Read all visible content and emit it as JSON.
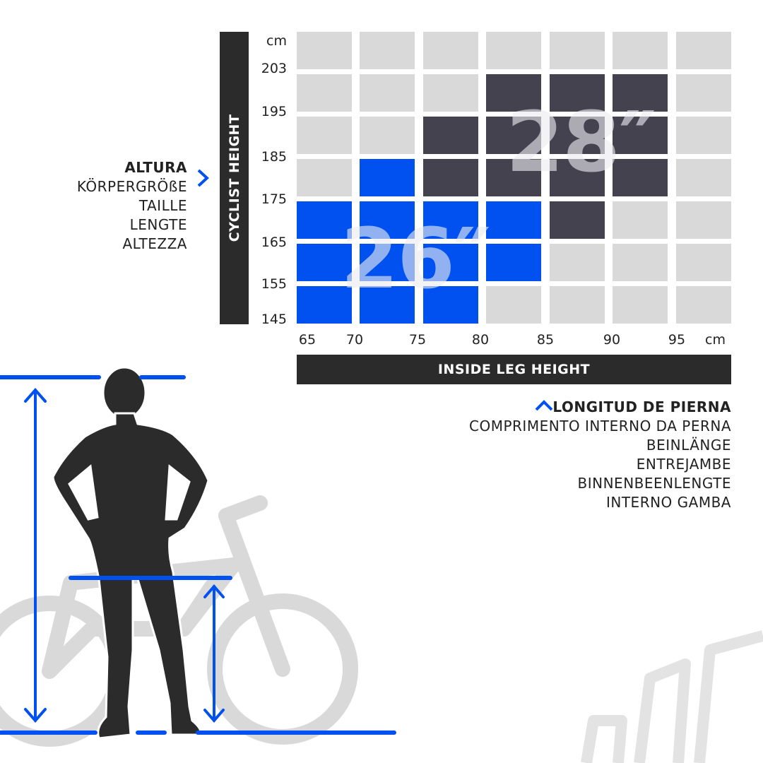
{
  "chart_data": {
    "type": "heatmap",
    "title": "",
    "ylabel": "CYCLIST HEIGHT",
    "xlabel": "INSIDE LEG HEIGHT",
    "y_unit": "cm",
    "x_unit": "cm",
    "y_ticks": [
      "203",
      "195",
      "185",
      "175",
      "165",
      "155",
      "145"
    ],
    "x_ticks": [
      "65",
      "70",
      "75",
      "80",
      "85",
      "90",
      "95"
    ],
    "rows_top_to_bottom": [
      [
        "none",
        "none",
        "none",
        "none",
        "none",
        "none",
        "none"
      ],
      [
        "none",
        "none",
        "none",
        "28",
        "28",
        "28",
        "none"
      ],
      [
        "none",
        "none",
        "28",
        "28",
        "28",
        "28",
        "none"
      ],
      [
        "none",
        "26",
        "28",
        "28",
        "28",
        "28",
        "none"
      ],
      [
        "26",
        "26",
        "26",
        "26",
        "28",
        "none",
        "none"
      ],
      [
        "26",
        "26",
        "26",
        "26",
        "none",
        "none",
        "none"
      ],
      [
        "26",
        "26",
        "26",
        "none",
        "none",
        "none",
        "none"
      ]
    ],
    "series": [
      {
        "name": "26″",
        "color": "#0051ef"
      },
      {
        "name": "28″",
        "color": "#44424f"
      }
    ],
    "empty_color": "#d9d9d9",
    "grid": false
  },
  "labels": {
    "height_languages": [
      "ALTURA",
      "KÖRPERGRÖßE",
      "TAILLE",
      "LENGTE",
      "ALTEZZA"
    ],
    "leg_languages": [
      "LONGITUD DE PIERNA",
      "COMPRIMENTO INTERNO DA PERNA",
      "BEINLÄNGE",
      "ENTREJAMBE",
      "BINNENBEENLENGTE",
      "INTERNO GAMBA"
    ]
  },
  "colors": {
    "accent": "#0051ef",
    "dark": "#2b2b2b",
    "bike": "#d9d9d9"
  },
  "icons": {
    "height_pointer": "chevron-right-icon",
    "leg_pointer": "chevron-up-icon"
  }
}
